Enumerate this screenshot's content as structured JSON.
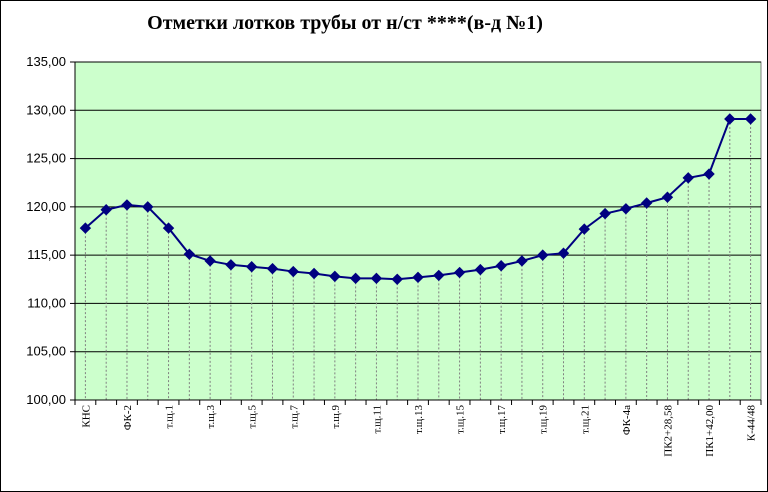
{
  "chart_data": {
    "type": "line",
    "title": "Отметки лотков трубы от н/ст ****(в-д №1)",
    "ylim": [
      100,
      135
    ],
    "yticks": [
      "100,00",
      "105,00",
      "110,00",
      "115,00",
      "120,00",
      "125,00",
      "130,00",
      "135,00"
    ],
    "ytick_values": [
      100,
      105,
      110,
      115,
      120,
      125,
      130,
      135
    ],
    "categories": [
      "КНС",
      "",
      "ФК-2",
      "",
      "т.щ.1",
      "",
      "т.щ.3",
      "",
      "т.щ.5",
      "",
      "т.щ.7",
      "",
      "т.щ.9",
      "",
      "т.щ.11",
      "",
      "т.щ.13",
      "",
      "т.щ.15",
      "",
      "т.щ.17",
      "",
      "т.щ.19",
      "",
      "т.щ.21",
      "",
      "ФК-4а",
      "",
      "ПК2+28,58",
      "",
      "ПК1+42,00",
      "",
      "К-44/48"
    ],
    "series": [
      {
        "values": [
          117.8,
          119.7,
          120.2,
          120.0,
          117.8,
          115.1,
          114.4,
          114.0,
          113.8,
          113.6,
          113.3,
          113.1,
          112.8,
          112.6,
          112.6,
          112.5,
          112.7,
          112.9,
          113.2,
          113.5,
          113.9,
          114.4,
          115.0,
          115.2,
          117.7,
          119.3,
          119.8,
          120.4,
          121.0,
          123.0,
          123.4,
          129.1,
          129.1
        ]
      }
    ],
    "grid": true,
    "plot_background": "#ccffcc",
    "line_color": "#000080",
    "marker": "diamond",
    "legend": "none"
  }
}
